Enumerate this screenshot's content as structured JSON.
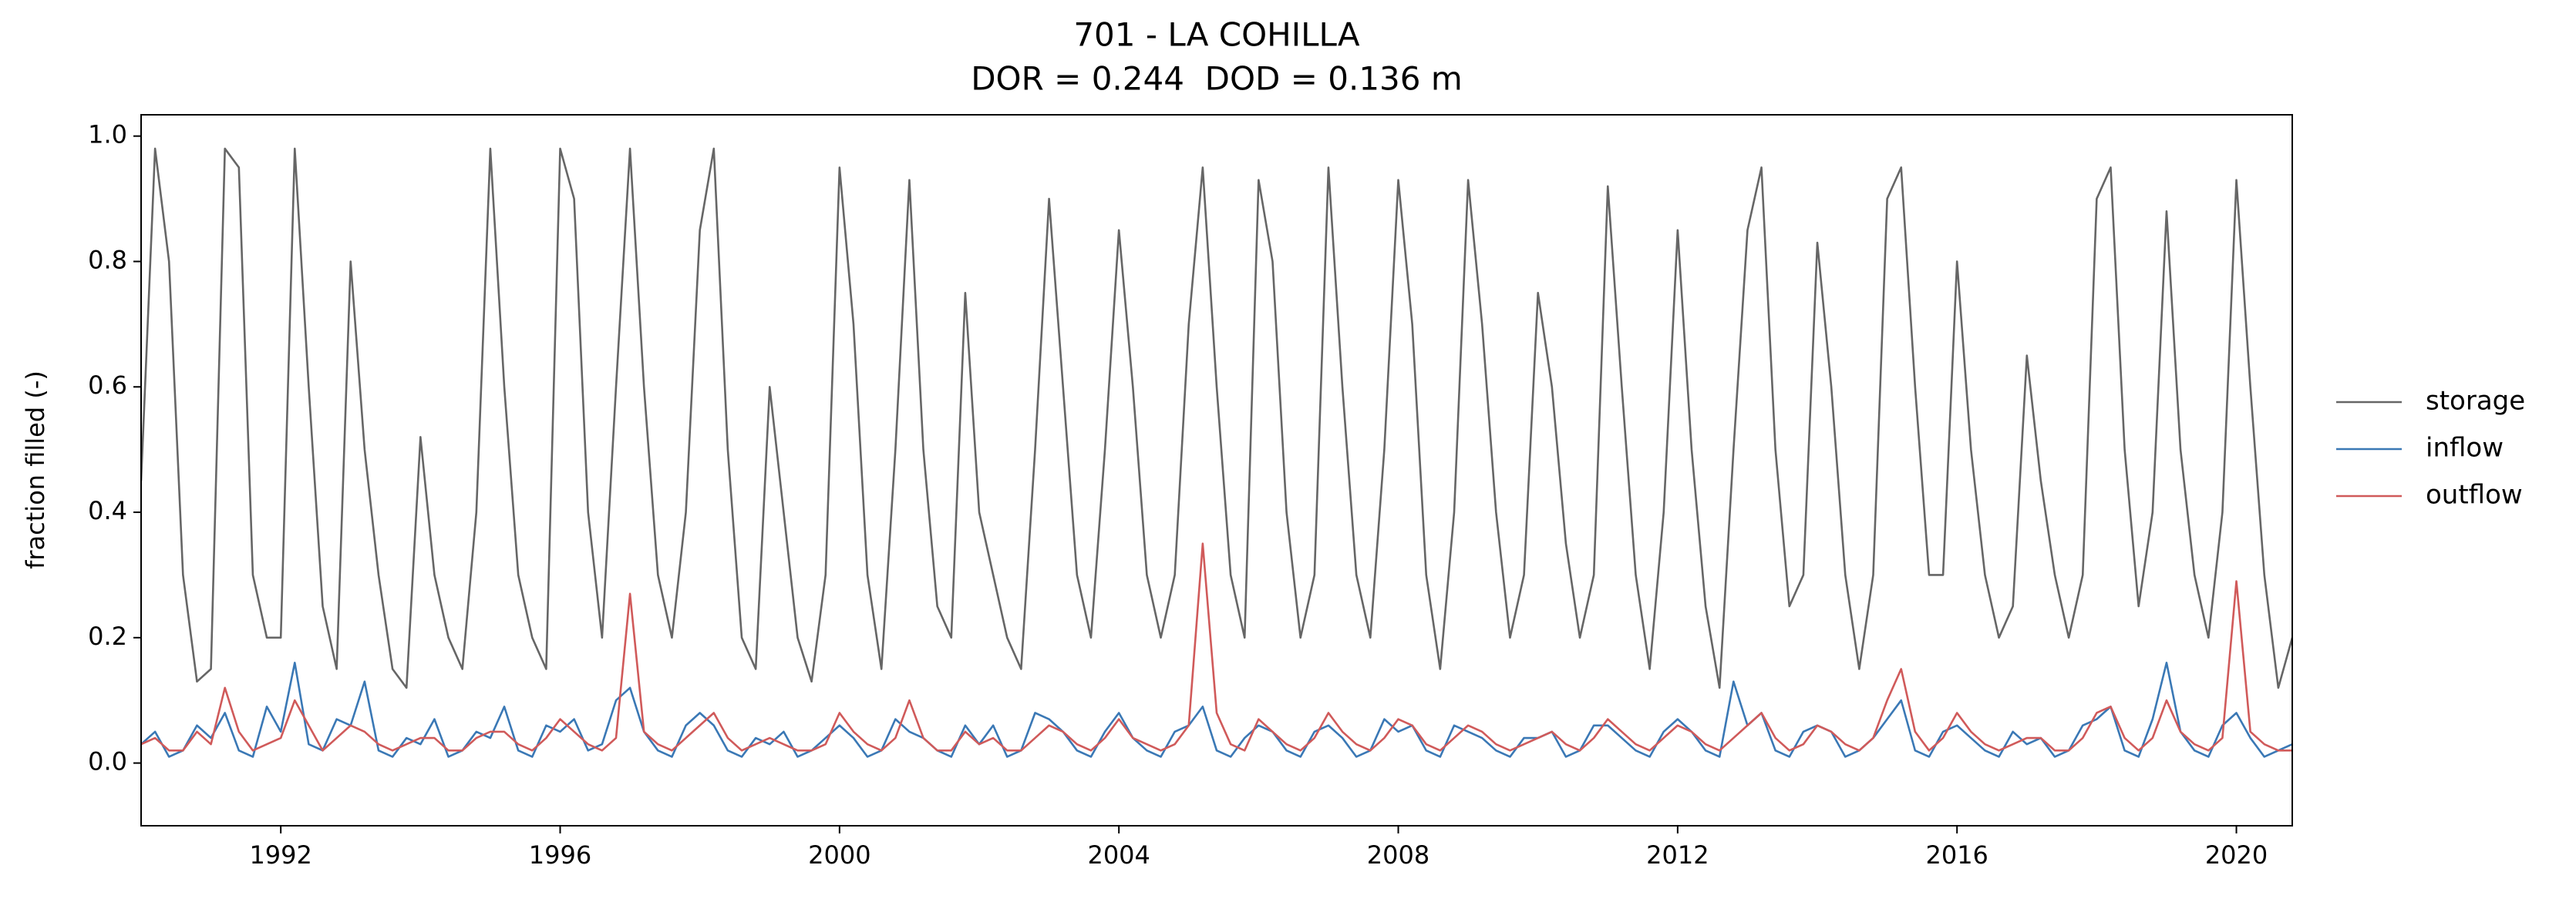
{
  "chart_data": {
    "type": "line",
    "title": "701 - LA COHILLA",
    "subtitle": "DOR = 0.244  DOD = 0.136 m",
    "y_label": "fraction filled (-)",
    "xlim": [
      1990.0,
      2020.8
    ],
    "xticks": [
      1992,
      1996,
      2000,
      2004,
      2008,
      2012,
      2016,
      2020
    ],
    "ylim": [
      -0.1,
      1.034
    ],
    "yticks": [
      {
        "value": 0,
        "label": "0.0"
      },
      0.2,
      0.4,
      0.6,
      0.8,
      {
        "value": 1,
        "label": "1.0"
      }
    ],
    "legend": "outside-right",
    "x": [
      1990,
      1990.2,
      1990.4,
      1990.6,
      1990.8,
      1991,
      1991.2,
      1991.4,
      1991.6,
      1991.8,
      1992,
      1992.2,
      1992.4,
      1992.6,
      1992.8,
      1993,
      1993.2,
      1993.4,
      1993.6,
      1993.8,
      1994,
      1994.2,
      1994.4,
      1994.6,
      1994.8,
      1995,
      1995.2,
      1995.4,
      1995.6,
      1995.8,
      1996,
      1996.2,
      1996.4,
      1996.6,
      1996.8,
      1997,
      1997.2,
      1997.4,
      1997.6,
      1997.8,
      1998,
      1998.2,
      1998.4,
      1998.6,
      1998.8,
      1999,
      1999.2,
      1999.4,
      1999.6,
      1999.8,
      2000,
      2000.2,
      2000.4,
      2000.6,
      2000.8,
      2001,
      2001.2,
      2001.4,
      2001.6,
      2001.8,
      2002,
      2002.2,
      2002.4,
      2002.6,
      2002.8,
      2003,
      2003.2,
      2003.4,
      2003.6,
      2003.8,
      2004,
      2004.2,
      2004.4,
      2004.6,
      2004.8,
      2005,
      2005.2,
      2005.4,
      2005.6,
      2005.8,
      2006,
      2006.2,
      2006.4,
      2006.6,
      2006.8,
      2007,
      2007.2,
      2007.4,
      2007.6,
      2007.8,
      2008,
      2008.2,
      2008.4,
      2008.6,
      2008.8,
      2009,
      2009.2,
      2009.4,
      2009.6,
      2009.8,
      2010,
      2010.2,
      2010.4,
      2010.6,
      2010.8,
      2011,
      2011.2,
      2011.4,
      2011.6,
      2011.8,
      2012,
      2012.2,
      2012.4,
      2012.6,
      2012.8,
      2013,
      2013.2,
      2013.4,
      2013.6,
      2013.8,
      2014,
      2014.2,
      2014.4,
      2014.6,
      2014.8,
      2015,
      2015.2,
      2015.4,
      2015.6,
      2015.8,
      2016,
      2016.2,
      2016.4,
      2016.6,
      2016.8,
      2017,
      2017.2,
      2017.4,
      2017.6,
      2017.8,
      2018,
      2018.2,
      2018.4,
      2018.6,
      2018.8,
      2019,
      2019.2,
      2019.4,
      2019.6,
      2019.8,
      2020,
      2020.2,
      2020.4,
      2020.6,
      2020.8
    ],
    "series": [
      {
        "name": "storage",
        "color": "#666666",
        "values": [
          0.45,
          0.98,
          0.8,
          0.3,
          0.13,
          0.15,
          0.98,
          0.95,
          0.3,
          0.2,
          0.2,
          0.98,
          0.6,
          0.25,
          0.15,
          0.8,
          0.5,
          0.3,
          0.15,
          0.12,
          0.52,
          0.3,
          0.2,
          0.15,
          0.4,
          0.98,
          0.6,
          0.3,
          0.2,
          0.15,
          0.98,
          0.9,
          0.4,
          0.2,
          0.6,
          0.98,
          0.6,
          0.3,
          0.2,
          0.4,
          0.85,
          0.98,
          0.5,
          0.2,
          0.15,
          0.6,
          0.4,
          0.2,
          0.13,
          0.3,
          0.95,
          0.7,
          0.3,
          0.15,
          0.5,
          0.93,
          0.5,
          0.25,
          0.2,
          0.75,
          0.4,
          0.3,
          0.2,
          0.15,
          0.5,
          0.9,
          0.6,
          0.3,
          0.2,
          0.5,
          0.85,
          0.6,
          0.3,
          0.2,
          0.3,
          0.7,
          0.95,
          0.6,
          0.3,
          0.2,
          0.93,
          0.8,
          0.4,
          0.2,
          0.3,
          0.95,
          0.6,
          0.3,
          0.2,
          0.5,
          0.93,
          0.7,
          0.3,
          0.15,
          0.4,
          0.93,
          0.7,
          0.4,
          0.2,
          0.3,
          0.75,
          0.6,
          0.35,
          0.2,
          0.3,
          0.92,
          0.6,
          0.3,
          0.15,
          0.4,
          0.85,
          0.5,
          0.25,
          0.12,
          0.5,
          0.85,
          0.95,
          0.5,
          0.25,
          0.3,
          0.83,
          0.6,
          0.3,
          0.15,
          0.3,
          0.9,
          0.95,
          0.6,
          0.3,
          0.3,
          0.8,
          0.5,
          0.3,
          0.2,
          0.25,
          0.65,
          0.45,
          0.3,
          0.2,
          0.3,
          0.9,
          0.95,
          0.5,
          0.25,
          0.4,
          0.88,
          0.5,
          0.3,
          0.2,
          0.4,
          0.93,
          0.6,
          0.3,
          0.12,
          0.2
        ]
      },
      {
        "name": "inflow",
        "color": "#3a78b5",
        "values": [
          0.03,
          0.05,
          0.01,
          0.02,
          0.06,
          0.04,
          0.08,
          0.02,
          0.01,
          0.09,
          0.05,
          0.16,
          0.03,
          0.02,
          0.07,
          0.06,
          0.13,
          0.02,
          0.01,
          0.04,
          0.03,
          0.07,
          0.01,
          0.02,
          0.05,
          0.04,
          0.09,
          0.02,
          0.01,
          0.06,
          0.05,
          0.07,
          0.02,
          0.03,
          0.1,
          0.12,
          0.05,
          0.02,
          0.01,
          0.06,
          0.08,
          0.06,
          0.02,
          0.01,
          0.04,
          0.03,
          0.05,
          0.01,
          0.02,
          0.04,
          0.06,
          0.04,
          0.01,
          0.02,
          0.07,
          0.05,
          0.04,
          0.02,
          0.01,
          0.06,
          0.03,
          0.06,
          0.01,
          0.02,
          0.08,
          0.07,
          0.05,
          0.02,
          0.01,
          0.05,
          0.08,
          0.04,
          0.02,
          0.01,
          0.05,
          0.06,
          0.09,
          0.02,
          0.01,
          0.04,
          0.06,
          0.05,
          0.02,
          0.01,
          0.05,
          0.06,
          0.04,
          0.01,
          0.02,
          0.07,
          0.05,
          0.06,
          0.02,
          0.01,
          0.06,
          0.05,
          0.04,
          0.02,
          0.01,
          0.04,
          0.04,
          0.05,
          0.01,
          0.02,
          0.06,
          0.06,
          0.04,
          0.02,
          0.01,
          0.05,
          0.07,
          0.05,
          0.02,
          0.01,
          0.13,
          0.06,
          0.08,
          0.02,
          0.01,
          0.05,
          0.06,
          0.05,
          0.01,
          0.02,
          0.04,
          0.07,
          0.1,
          0.02,
          0.01,
          0.05,
          0.06,
          0.04,
          0.02,
          0.01,
          0.05,
          0.03,
          0.04,
          0.01,
          0.02,
          0.06,
          0.07,
          0.09,
          0.02,
          0.01,
          0.07,
          0.16,
          0.05,
          0.02,
          0.01,
          0.06,
          0.08,
          0.04,
          0.01,
          0.02,
          0.03
        ]
      },
      {
        "name": "outflow",
        "color": "#d05a5a",
        "values": [
          0.03,
          0.04,
          0.02,
          0.02,
          0.05,
          0.03,
          0.12,
          0.05,
          0.02,
          0.03,
          0.04,
          0.1,
          0.06,
          0.02,
          0.04,
          0.06,
          0.05,
          0.03,
          0.02,
          0.03,
          0.04,
          0.04,
          0.02,
          0.02,
          0.04,
          0.05,
          0.05,
          0.03,
          0.02,
          0.04,
          0.07,
          0.05,
          0.03,
          0.02,
          0.04,
          0.27,
          0.05,
          0.03,
          0.02,
          0.04,
          0.06,
          0.08,
          0.04,
          0.02,
          0.03,
          0.04,
          0.03,
          0.02,
          0.02,
          0.03,
          0.08,
          0.05,
          0.03,
          0.02,
          0.04,
          0.1,
          0.04,
          0.02,
          0.02,
          0.05,
          0.03,
          0.04,
          0.02,
          0.02,
          0.04,
          0.06,
          0.05,
          0.03,
          0.02,
          0.04,
          0.07,
          0.04,
          0.03,
          0.02,
          0.03,
          0.06,
          0.35,
          0.08,
          0.03,
          0.02,
          0.07,
          0.05,
          0.03,
          0.02,
          0.04,
          0.08,
          0.05,
          0.03,
          0.02,
          0.04,
          0.07,
          0.06,
          0.03,
          0.02,
          0.04,
          0.06,
          0.05,
          0.03,
          0.02,
          0.03,
          0.04,
          0.05,
          0.03,
          0.02,
          0.04,
          0.07,
          0.05,
          0.03,
          0.02,
          0.04,
          0.06,
          0.05,
          0.03,
          0.02,
          0.04,
          0.06,
          0.08,
          0.04,
          0.02,
          0.03,
          0.06,
          0.05,
          0.03,
          0.02,
          0.04,
          0.1,
          0.15,
          0.05,
          0.02,
          0.04,
          0.08,
          0.05,
          0.03,
          0.02,
          0.03,
          0.04,
          0.04,
          0.02,
          0.02,
          0.04,
          0.08,
          0.09,
          0.04,
          0.02,
          0.04,
          0.1,
          0.05,
          0.03,
          0.02,
          0.04,
          0.29,
          0.05,
          0.03,
          0.02,
          0.02
        ]
      }
    ]
  }
}
